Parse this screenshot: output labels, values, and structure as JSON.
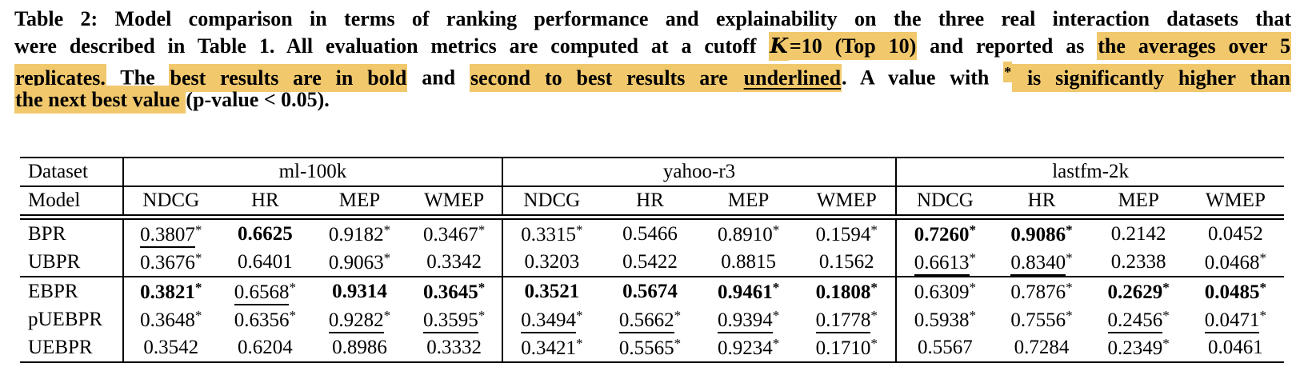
{
  "page": {
    "background": "#ffffff",
    "text_color": "#000000",
    "highlight_color": "#F1C86C"
  },
  "caption": {
    "lines": [
      {
        "segments": [
          {
            "text": "Table 2: Model comparison in terms of ranking performance and explainability on the three real interaction datasets that"
          }
        ]
      },
      {
        "segments": [
          {
            "text": "were described in Table 1. All evaluation metrics are computed at a cutoff "
          },
          {
            "text": "K",
            "hl": true,
            "cal": true
          },
          {
            "text": "=10 (Top 10)",
            "hl": true
          },
          {
            "text": " and reported as ",
            "hl": false
          },
          {
            "text": "the averages over 5",
            "hl": true
          }
        ]
      },
      {
        "segments": [
          {
            "text": "replicates.",
            "hl": true
          },
          {
            "text": " The ",
            "hl": false
          },
          {
            "text": "best results are in bold",
            "hl": true
          },
          {
            "text": " and ",
            "hl": false
          },
          {
            "text": "second to best results are ",
            "hl": true
          },
          {
            "text": "underlined",
            "hl": true,
            "u": true
          },
          {
            "text": ". A value with ",
            "hl": false
          },
          {
            "text": "*",
            "hl": true,
            "sup": true
          },
          {
            "text": " is significantly higher than",
            "hl": true
          }
        ]
      },
      {
        "segments": [
          {
            "text": "the next best value ",
            "hl": true
          },
          {
            "text": "(p-value < 0.05).",
            "hl": false
          }
        ]
      }
    ]
  },
  "table": {
    "corner": {
      "dataset_label": "Dataset",
      "model_label": "Model"
    },
    "groups": [
      {
        "name": "ml-100k"
      },
      {
        "name": "yahoo-r3"
      },
      {
        "name": "lastfm-2k"
      }
    ],
    "metrics": [
      "NDCG",
      "HR",
      "MEP",
      "WMEP"
    ],
    "rows": [
      {
        "model": "BPR",
        "section_end": false,
        "cells": [
          {
            "v": "0.3807",
            "star": true,
            "u": true
          },
          {
            "v": "0.6625",
            "b": true
          },
          {
            "v": "0.9182",
            "star": true
          },
          {
            "v": "0.3467",
            "star": true
          },
          {
            "v": "0.3315",
            "star": true
          },
          {
            "v": "0.5466"
          },
          {
            "v": "0.8910",
            "star": true
          },
          {
            "v": "0.1594",
            "star": true
          },
          {
            "v": "0.7260",
            "star": true,
            "b": true
          },
          {
            "v": "0.9086",
            "star": true,
            "b": true
          },
          {
            "v": "0.2142"
          },
          {
            "v": "0.0452"
          }
        ]
      },
      {
        "model": "UBPR",
        "section_end": true,
        "cells": [
          {
            "v": "0.3676",
            "star": true
          },
          {
            "v": "0.6401"
          },
          {
            "v": "0.9063",
            "star": true
          },
          {
            "v": "0.3342"
          },
          {
            "v": "0.3203"
          },
          {
            "v": "0.5422"
          },
          {
            "v": "0.8815"
          },
          {
            "v": "0.1562"
          },
          {
            "v": "0.6613",
            "star": true,
            "u": true
          },
          {
            "v": "0.8340",
            "star": true,
            "u": true
          },
          {
            "v": "0.2338"
          },
          {
            "v": "0.0468",
            "star": true
          }
        ]
      },
      {
        "model": "EBPR",
        "section_end": false,
        "cells": [
          {
            "v": "0.3821",
            "star": true,
            "b": true
          },
          {
            "v": "0.6568",
            "star": true,
            "u": true
          },
          {
            "v": "0.9314",
            "b": true
          },
          {
            "v": "0.3645",
            "star": true,
            "b": true
          },
          {
            "v": "0.3521",
            "b": true
          },
          {
            "v": "0.5674",
            "b": true
          },
          {
            "v": "0.9461",
            "star": true,
            "b": true
          },
          {
            "v": "0.1808",
            "star": true,
            "b": true
          },
          {
            "v": "0.6309",
            "star": true
          },
          {
            "v": "0.7876",
            "star": true
          },
          {
            "v": "0.2629",
            "star": true,
            "b": true
          },
          {
            "v": "0.0485",
            "star": true,
            "b": true
          }
        ]
      },
      {
        "model": "pUEBPR",
        "section_end": false,
        "cells": [
          {
            "v": "0.3648",
            "star": true
          },
          {
            "v": "0.6356",
            "star": true
          },
          {
            "v": "0.9282",
            "star": true,
            "u": true
          },
          {
            "v": "0.3595",
            "star": true,
            "u": true
          },
          {
            "v": "0.3494",
            "star": true,
            "u": true
          },
          {
            "v": "0.5662",
            "star": true,
            "u": true
          },
          {
            "v": "0.9394",
            "star": true,
            "u": true
          },
          {
            "v": "0.1778",
            "star": true,
            "u": true
          },
          {
            "v": "0.5938",
            "star": true
          },
          {
            "v": "0.7556",
            "star": true
          },
          {
            "v": "0.2456",
            "star": true,
            "u": true
          },
          {
            "v": "0.0471",
            "star": true,
            "u": true
          }
        ]
      },
      {
        "model": "UEBPR",
        "section_end": false,
        "cells": [
          {
            "v": "0.3542"
          },
          {
            "v": "0.6204"
          },
          {
            "v": "0.8986"
          },
          {
            "v": "0.3332"
          },
          {
            "v": "0.3421",
            "star": true
          },
          {
            "v": "0.5565",
            "star": true
          },
          {
            "v": "0.9234",
            "star": true
          },
          {
            "v": "0.1710",
            "star": true
          },
          {
            "v": "0.5567"
          },
          {
            "v": "0.7284"
          },
          {
            "v": "0.2349",
            "star": true
          },
          {
            "v": "0.0461"
          }
        ]
      }
    ]
  }
}
